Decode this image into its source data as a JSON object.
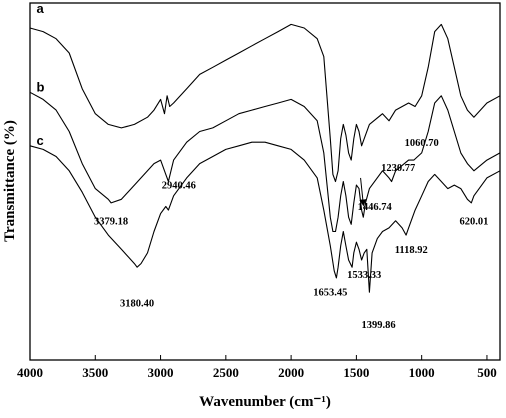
{
  "chart_data": {
    "type": "line",
    "xlabel": "Wavenumber (cm⁻¹)",
    "ylabel": "Transmittance (%)",
    "xlim": [
      4000,
      400
    ],
    "x_reversed": true,
    "x_ticks": [
      4000,
      3500,
      3000,
      2500,
      2000,
      1500,
      1000,
      500
    ],
    "y_ticks_shown": false,
    "grid": false,
    "ylim": [
      0,
      100
    ],
    "series": [
      {
        "name": "a",
        "color": "#000000",
        "points": [
          [
            4000,
            93
          ],
          [
            3900,
            92
          ],
          [
            3800,
            90
          ],
          [
            3700,
            86
          ],
          [
            3600,
            76
          ],
          [
            3500,
            69
          ],
          [
            3400,
            66
          ],
          [
            3300,
            65
          ],
          [
            3200,
            66
          ],
          [
            3100,
            68
          ],
          [
            3050,
            70
          ],
          [
            3000,
            73
          ],
          [
            2970,
            69
          ],
          [
            2950,
            74
          ],
          [
            2930,
            71
          ],
          [
            2900,
            72
          ],
          [
            2800,
            76
          ],
          [
            2700,
            80
          ],
          [
            2600,
            82
          ],
          [
            2500,
            84
          ],
          [
            2400,
            86
          ],
          [
            2300,
            88
          ],
          [
            2200,
            90
          ],
          [
            2100,
            92
          ],
          [
            2000,
            94
          ],
          [
            1900,
            93
          ],
          [
            1800,
            90
          ],
          [
            1750,
            85
          ],
          [
            1700,
            62
          ],
          [
            1680,
            52
          ],
          [
            1660,
            50
          ],
          [
            1640,
            53
          ],
          [
            1620,
            62
          ],
          [
            1600,
            66
          ],
          [
            1580,
            63
          ],
          [
            1560,
            58
          ],
          [
            1540,
            56
          ],
          [
            1520,
            62
          ],
          [
            1500,
            66
          ],
          [
            1480,
            64
          ],
          [
            1460,
            60
          ],
          [
            1440,
            62
          ],
          [
            1400,
            66
          ],
          [
            1300,
            69
          ],
          [
            1250,
            67
          ],
          [
            1200,
            70
          ],
          [
            1100,
            72
          ],
          [
            1050,
            71
          ],
          [
            1000,
            74
          ],
          [
            950,
            82
          ],
          [
            900,
            92
          ],
          [
            850,
            94
          ],
          [
            800,
            90
          ],
          [
            750,
            82
          ],
          [
            700,
            74
          ],
          [
            650,
            70
          ],
          [
            600,
            68
          ],
          [
            500,
            72
          ],
          [
            400,
            74
          ]
        ]
      },
      {
        "name": "b",
        "color": "#000000",
        "points": [
          [
            4000,
            75
          ],
          [
            3900,
            73
          ],
          [
            3800,
            70
          ],
          [
            3700,
            64
          ],
          [
            3600,
            55
          ],
          [
            3500,
            48
          ],
          [
            3400,
            45
          ],
          [
            3379,
            44
          ],
          [
            3300,
            45
          ],
          [
            3200,
            49
          ],
          [
            3100,
            53
          ],
          [
            3050,
            55
          ],
          [
            3000,
            56
          ],
          [
            2960,
            52
          ],
          [
            2940,
            50
          ],
          [
            2920,
            53
          ],
          [
            2900,
            56
          ],
          [
            2800,
            61
          ],
          [
            2700,
            64
          ],
          [
            2600,
            65
          ],
          [
            2500,
            67
          ],
          [
            2400,
            69
          ],
          [
            2300,
            70
          ],
          [
            2200,
            71
          ],
          [
            2100,
            72
          ],
          [
            2000,
            73
          ],
          [
            1900,
            71
          ],
          [
            1800,
            67
          ],
          [
            1750,
            58
          ],
          [
            1700,
            40
          ],
          [
            1680,
            36
          ],
          [
            1660,
            36
          ],
          [
            1640,
            40
          ],
          [
            1620,
            46
          ],
          [
            1600,
            50
          ],
          [
            1580,
            46
          ],
          [
            1560,
            40
          ],
          [
            1540,
            38
          ],
          [
            1520,
            44
          ],
          [
            1500,
            49
          ],
          [
            1480,
            48
          ],
          [
            1460,
            42
          ],
          [
            1447,
            40
          ],
          [
            1430,
            44
          ],
          [
            1400,
            48
          ],
          [
            1300,
            53
          ],
          [
            1250,
            51
          ],
          [
            1230,
            50
          ],
          [
            1200,
            53
          ],
          [
            1100,
            56
          ],
          [
            1060,
            56
          ],
          [
            1000,
            58
          ],
          [
            950,
            64
          ],
          [
            900,
            72
          ],
          [
            850,
            74
          ],
          [
            800,
            70
          ],
          [
            750,
            64
          ],
          [
            700,
            58
          ],
          [
            650,
            55
          ],
          [
            600,
            53
          ],
          [
            500,
            56
          ],
          [
            400,
            58
          ]
        ]
      },
      {
        "name": "c",
        "color": "#000000",
        "points": [
          [
            4000,
            60
          ],
          [
            3900,
            59
          ],
          [
            3800,
            57
          ],
          [
            3700,
            53
          ],
          [
            3600,
            47
          ],
          [
            3500,
            40
          ],
          [
            3400,
            35
          ],
          [
            3300,
            31
          ],
          [
            3200,
            27
          ],
          [
            3180,
            26
          ],
          [
            3150,
            27
          ],
          [
            3100,
            30
          ],
          [
            3050,
            36
          ],
          [
            3000,
            41
          ],
          [
            2960,
            43
          ],
          [
            2940,
            42
          ],
          [
            2920,
            44
          ],
          [
            2900,
            46
          ],
          [
            2800,
            51
          ],
          [
            2700,
            55
          ],
          [
            2600,
            57
          ],
          [
            2500,
            59
          ],
          [
            2400,
            60
          ],
          [
            2300,
            61
          ],
          [
            2200,
            61
          ],
          [
            2100,
            60
          ],
          [
            2000,
            59
          ],
          [
            1900,
            56
          ],
          [
            1800,
            51
          ],
          [
            1750,
            42
          ],
          [
            1700,
            32
          ],
          [
            1670,
            25
          ],
          [
            1653,
            23
          ],
          [
            1640,
            26
          ],
          [
            1620,
            32
          ],
          [
            1600,
            36
          ],
          [
            1580,
            32
          ],
          [
            1560,
            28
          ],
          [
            1533,
            26
          ],
          [
            1520,
            30
          ],
          [
            1500,
            33
          ],
          [
            1480,
            31
          ],
          [
            1460,
            28
          ],
          [
            1440,
            30
          ],
          [
            1420,
            31
          ],
          [
            1400,
            19
          ],
          [
            1380,
            30
          ],
          [
            1340,
            34
          ],
          [
            1300,
            36
          ],
          [
            1250,
            37
          ],
          [
            1200,
            39
          ],
          [
            1150,
            37
          ],
          [
            1119,
            35
          ],
          [
            1100,
            37
          ],
          [
            1050,
            42
          ],
          [
            1000,
            46
          ],
          [
            950,
            50
          ],
          [
            900,
            52
          ],
          [
            850,
            50
          ],
          [
            800,
            48
          ],
          [
            750,
            49
          ],
          [
            700,
            48
          ],
          [
            650,
            45
          ],
          [
            620,
            44
          ],
          [
            600,
            46
          ],
          [
            500,
            51
          ],
          [
            400,
            53
          ]
        ]
      }
    ],
    "series_labels": [
      {
        "text": "a",
        "x": 3950,
        "y": 100
      },
      {
        "text": "b",
        "x": 3950,
        "y": 78
      },
      {
        "text": "c",
        "x": 3950,
        "y": 63
      }
    ],
    "annotations": [
      {
        "text": "3379.18",
        "x": 3379,
        "y": 38
      },
      {
        "text": "2940.46",
        "x": 2860,
        "y": 48
      },
      {
        "text": "1060.70",
        "x": 1000,
        "y": 60
      },
      {
        "text": "1230.77",
        "x": 1180,
        "y": 53
      },
      {
        "text": "1446.74",
        "x": 1360,
        "y": 42
      },
      {
        "text": "620.01",
        "x": 600,
        "y": 38
      },
      {
        "text": "1118.92",
        "x": 1080,
        "y": 30
      },
      {
        "text": "1533.33",
        "x": 1440,
        "y": 23
      },
      {
        "text": "1653.45",
        "x": 1700,
        "y": 18
      },
      {
        "text": "3180.40",
        "x": 3180,
        "y": 15
      },
      {
        "text": "1399.86",
        "x": 1330,
        "y": 9
      }
    ],
    "arrow": {
      "from": [
        1468,
        51
      ],
      "to": [
        1448,
        44
      ]
    }
  }
}
